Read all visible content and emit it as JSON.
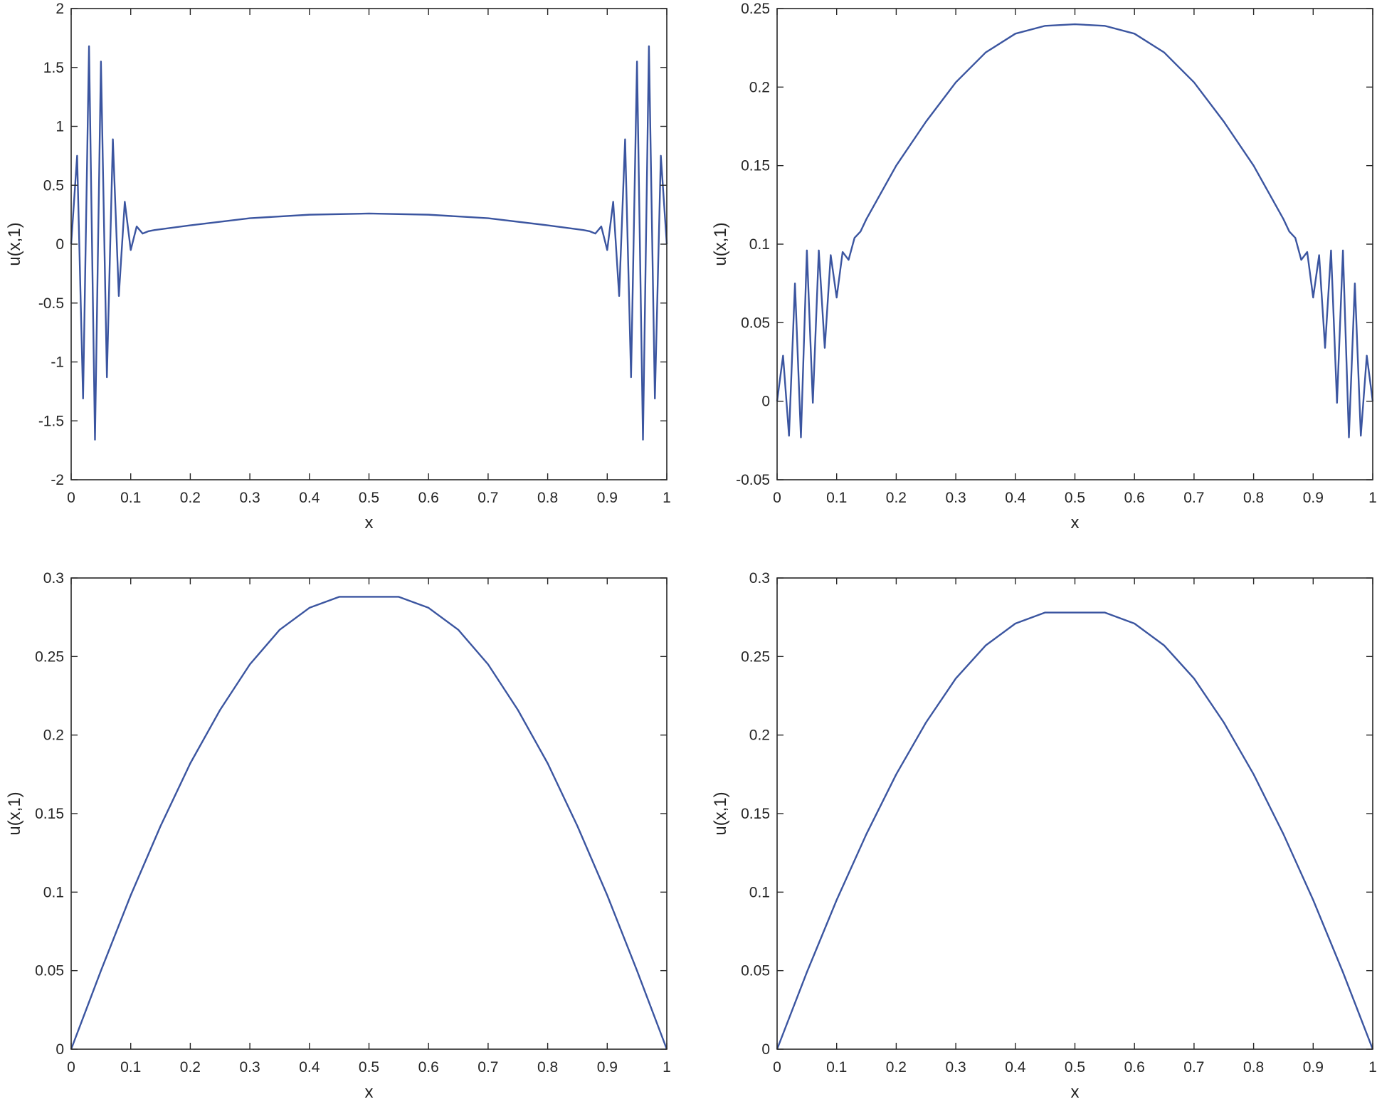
{
  "line_color": "#3b55a0",
  "chart_data": [
    {
      "type": "line",
      "xlabel": "x",
      "ylabel": "u(x,1)",
      "xlim": [
        0,
        1
      ],
      "ylim": [
        -2,
        2
      ],
      "xticks": [
        0,
        0.1,
        0.2,
        0.3,
        0.4,
        0.5,
        0.6,
        0.7,
        0.8,
        0.9,
        1
      ],
      "xtick_labels": [
        "0",
        "0.1",
        "0.2",
        "0.3",
        "0.4",
        "0.5",
        "0.6",
        "0.7",
        "0.8",
        "0.9",
        "1"
      ],
      "yticks": [
        -2,
        -1.5,
        -1,
        -0.5,
        0,
        0.5,
        1,
        1.5,
        2
      ],
      "ytick_labels": [
        "-2",
        "-1.5",
        "-1",
        "-0.5",
        "0",
        "0.5",
        "1",
        "1.5",
        "2"
      ],
      "grid": false,
      "series": [
        {
          "x": [
            0,
            0.01,
            0.02,
            0.03,
            0.04,
            0.05,
            0.06,
            0.07,
            0.08,
            0.09,
            0.1,
            0.11,
            0.12,
            0.13,
            0.14,
            0.2,
            0.3,
            0.4,
            0.5,
            0.6,
            0.7,
            0.8,
            0.86,
            0.87,
            0.88,
            0.89,
            0.9,
            0.91,
            0.92,
            0.93,
            0.94,
            0.95,
            0.96,
            0.97,
            0.98,
            0.99,
            1
          ],
          "y": [
            0,
            0.75,
            -1.31,
            1.68,
            -1.66,
            1.55,
            -1.13,
            0.89,
            -0.44,
            0.36,
            -0.05,
            0.15,
            0.09,
            0.11,
            0.12,
            0.16,
            0.22,
            0.25,
            0.26,
            0.25,
            0.22,
            0.16,
            0.12,
            0.11,
            0.09,
            0.15,
            -0.05,
            0.36,
            -0.44,
            0.89,
            -1.13,
            1.55,
            -1.66,
            1.68,
            -1.31,
            0.75,
            0
          ]
        }
      ]
    },
    {
      "type": "line",
      "xlabel": "x",
      "ylabel": "u(x,1)",
      "xlim": [
        0,
        1
      ],
      "ylim": [
        -0.05,
        0.25
      ],
      "xticks": [
        0,
        0.1,
        0.2,
        0.3,
        0.4,
        0.5,
        0.6,
        0.7,
        0.8,
        0.9,
        1
      ],
      "xtick_labels": [
        "0",
        "0.1",
        "0.2",
        "0.3",
        "0.4",
        "0.5",
        "0.6",
        "0.7",
        "0.8",
        "0.9",
        "1"
      ],
      "yticks": [
        -0.05,
        0,
        0.05,
        0.1,
        0.15,
        0.2,
        0.25
      ],
      "ytick_labels": [
        "-0.05",
        "0",
        "0.05",
        "0.1",
        "0.15",
        "0.2",
        "0.25"
      ],
      "grid": false,
      "series": [
        {
          "x": [
            0,
            0.01,
            0.02,
            0.03,
            0.04,
            0.05,
            0.06,
            0.07,
            0.08,
            0.09,
            0.1,
            0.11,
            0.12,
            0.13,
            0.14,
            0.15,
            0.2,
            0.25,
            0.3,
            0.35,
            0.4,
            0.45,
            0.5,
            0.55,
            0.6,
            0.65,
            0.7,
            0.75,
            0.8,
            0.85,
            0.86,
            0.87,
            0.88,
            0.89,
            0.9,
            0.91,
            0.92,
            0.93,
            0.94,
            0.95,
            0.96,
            0.97,
            0.98,
            0.99,
            1
          ],
          "y": [
            0,
            0.029,
            -0.022,
            0.075,
            -0.023,
            0.096,
            -0.001,
            0.096,
            0.034,
            0.093,
            0.066,
            0.095,
            0.09,
            0.104,
            0.108,
            0.116,
            0.15,
            0.178,
            0.203,
            0.222,
            0.234,
            0.239,
            0.24,
            0.239,
            0.234,
            0.222,
            0.203,
            0.178,
            0.15,
            0.116,
            0.108,
            0.104,
            0.09,
            0.095,
            0.066,
            0.093,
            0.034,
            0.096,
            -0.001,
            0.096,
            -0.023,
            0.075,
            -0.022,
            0.029,
            0
          ]
        }
      ]
    },
    {
      "type": "line",
      "xlabel": "x",
      "ylabel": "u(x,1)",
      "xlim": [
        0,
        1
      ],
      "ylim": [
        0,
        0.3
      ],
      "xticks": [
        0,
        0.1,
        0.2,
        0.3,
        0.4,
        0.5,
        0.6,
        0.7,
        0.8,
        0.9,
        1
      ],
      "xtick_labels": [
        "0",
        "0.1",
        "0.2",
        "0.3",
        "0.4",
        "0.5",
        "0.6",
        "0.7",
        "0.8",
        "0.9",
        "1"
      ],
      "yticks": [
        0,
        0.05,
        0.1,
        0.15,
        0.2,
        0.25,
        0.3
      ],
      "ytick_labels": [
        "0",
        "0.05",
        "0.1",
        "0.15",
        "0.2",
        "0.25",
        "0.3"
      ],
      "grid": false,
      "series": [
        {
          "x": [
            0,
            0.05,
            0.1,
            0.15,
            0.2,
            0.25,
            0.3,
            0.35,
            0.4,
            0.45,
            0.5,
            0.55,
            0.6,
            0.65,
            0.7,
            0.75,
            0.8,
            0.85,
            0.9,
            0.95,
            1
          ],
          "y": [
            0,
            0.05,
            0.098,
            0.142,
            0.182,
            0.216,
            0.245,
            0.267,
            0.281,
            0.288,
            0.288,
            0.288,
            0.281,
            0.267,
            0.245,
            0.216,
            0.182,
            0.142,
            0.098,
            0.05,
            0
          ]
        }
      ]
    },
    {
      "type": "line",
      "xlabel": "x",
      "ylabel": "u(x,1)",
      "xlim": [
        0,
        1
      ],
      "ylim": [
        0,
        0.3
      ],
      "xticks": [
        0,
        0.1,
        0.2,
        0.3,
        0.4,
        0.5,
        0.6,
        0.7,
        0.8,
        0.9,
        1
      ],
      "xtick_labels": [
        "0",
        "0.1",
        "0.2",
        "0.3",
        "0.4",
        "0.5",
        "0.6",
        "0.7",
        "0.8",
        "0.9",
        "1"
      ],
      "yticks": [
        0,
        0.05,
        0.1,
        0.15,
        0.2,
        0.25,
        0.3
      ],
      "ytick_labels": [
        "0",
        "0.05",
        "0.1",
        "0.15",
        "0.2",
        "0.25",
        "0.3"
      ],
      "grid": false,
      "series": [
        {
          "x": [
            0,
            0.05,
            0.1,
            0.15,
            0.2,
            0.25,
            0.3,
            0.35,
            0.4,
            0.45,
            0.5,
            0.55,
            0.6,
            0.65,
            0.7,
            0.75,
            0.8,
            0.85,
            0.9,
            0.95,
            1
          ],
          "y": [
            0,
            0.049,
            0.095,
            0.137,
            0.175,
            0.208,
            0.236,
            0.257,
            0.271,
            0.278,
            0.278,
            0.278,
            0.271,
            0.257,
            0.236,
            0.208,
            0.175,
            0.137,
            0.095,
            0.049,
            0
          ]
        }
      ]
    }
  ]
}
